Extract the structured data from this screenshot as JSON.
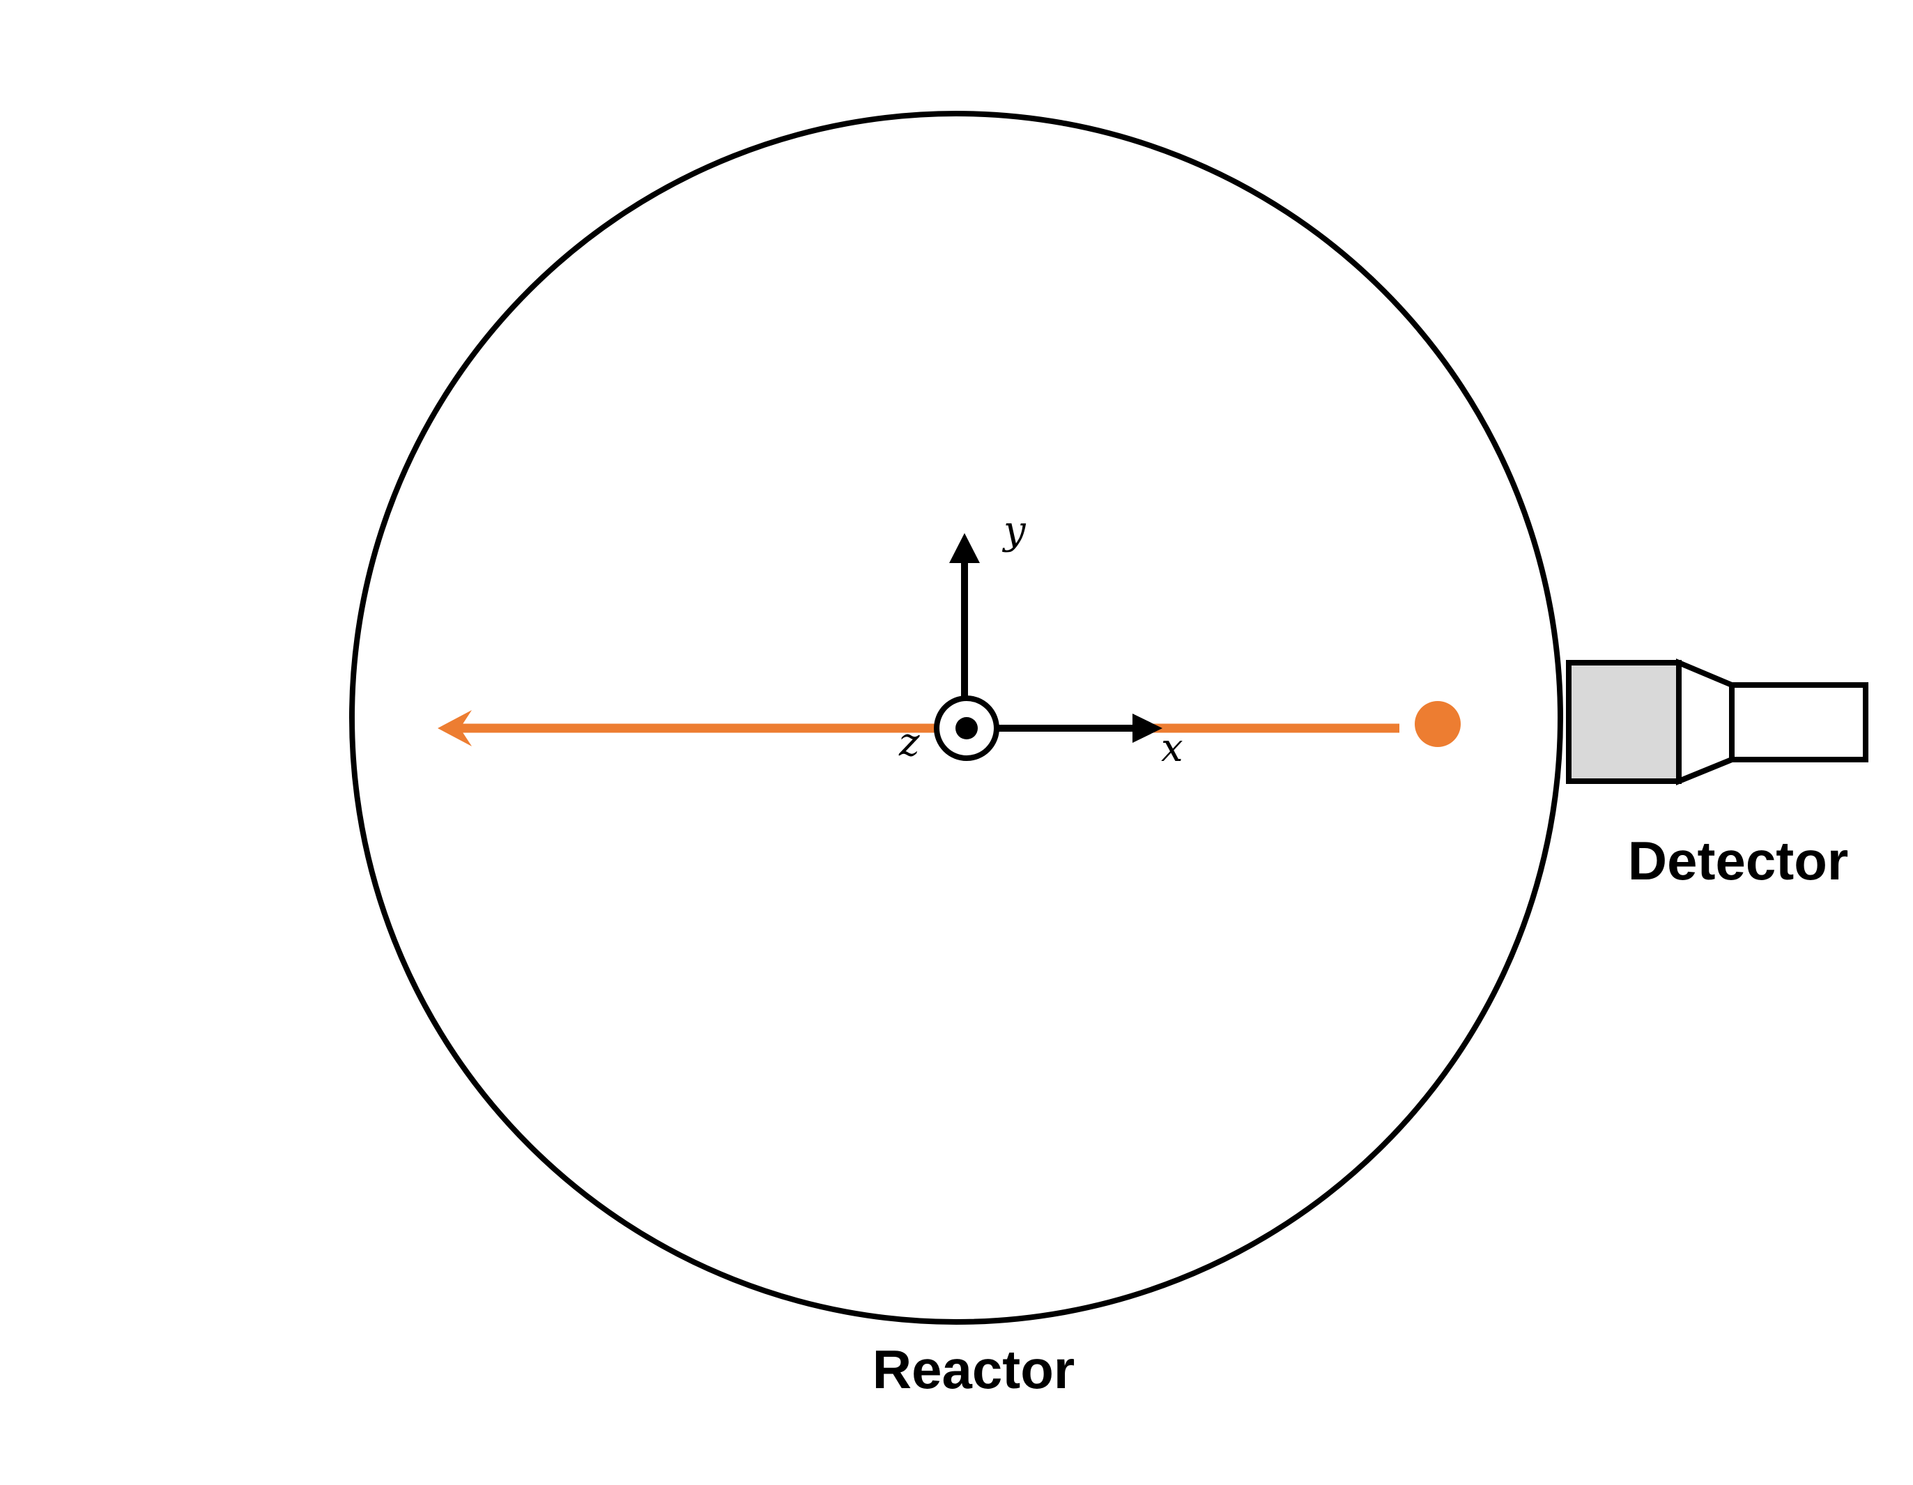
{
  "labels": {
    "reactor": "Reactor",
    "detector": "Detector",
    "axis_x": "x",
    "axis_y": "y",
    "axis_z": "z"
  },
  "colors": {
    "beam": "#ED7D31",
    "outline": "#000000",
    "detector_head_fill": "#D9D9D9",
    "background": "#FFFFFF"
  },
  "icons": {
    "z_axis_symbol": "out-of-page-dot-in-circle-icon"
  }
}
